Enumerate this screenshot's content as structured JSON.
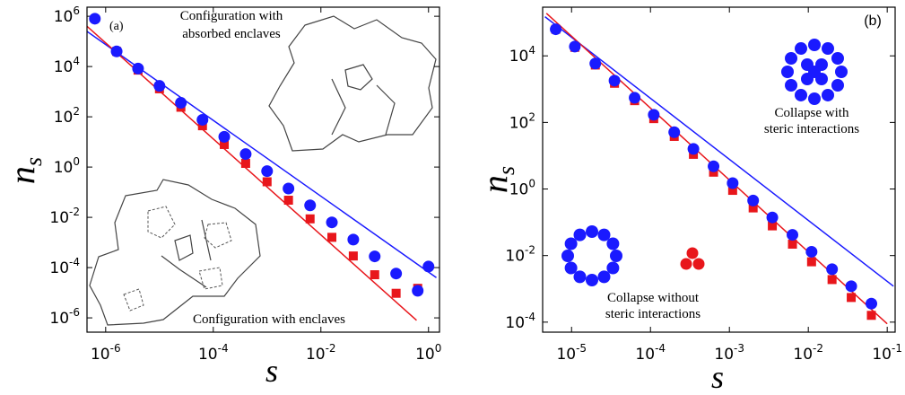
{
  "chart_data": [
    {
      "type": "scatter",
      "panel_label": "(a)",
      "xlabel": "s",
      "ylabel": "n",
      "ylabel_sub": "s",
      "log_x": true,
      "log_y": true,
      "xlim": [
        4.5e-07,
        1.6
      ],
      "ylim": [
        2.7e-07,
        2300000.0
      ],
      "xticks": [
        {
          "value": 1e-06,
          "label": "10",
          "exp": "-6"
        },
        {
          "value": 0.0001,
          "label": "10",
          "exp": "-4"
        },
        {
          "value": 0.01,
          "label": "10",
          "exp": "-2"
        },
        {
          "value": 1,
          "label": "10",
          "exp": "0"
        }
      ],
      "yticks": [
        {
          "value": 1000000.0,
          "label": "10",
          "exp": "6"
        },
        {
          "value": 10000.0,
          "label": "10",
          "exp": "4"
        },
        {
          "value": 100.0,
          "label": "10",
          "exp": "2"
        },
        {
          "value": 1,
          "label": "10",
          "exp": "0"
        },
        {
          "value": 0.01,
          "label": "10",
          "exp": "-2"
        },
        {
          "value": 0.0001,
          "label": "10",
          "exp": "-4"
        },
        {
          "value": 1e-06,
          "label": "10",
          "exp": "-6"
        }
      ],
      "annotations": [
        "Configuration with",
        "absorbed enclaves",
        "Configuration with enclaves"
      ],
      "series": [
        {
          "color": "#e8161b",
          "marker": "square",
          "x": [
            1.6e-06,
            4e-06,
            1e-05,
            2.5e-05,
            6.3e-05,
            0.00016,
            0.0004,
            0.001,
            0.0025,
            0.0063,
            0.016,
            0.04,
            0.1,
            0.25,
            0.63
          ],
          "values": [
            40000.0,
            7200.0,
            1300.0,
            240.0,
            44,
            7.9,
            1.4,
            0.26,
            0.048,
            0.0087,
            0.0016,
            0.00029,
            5.2e-05,
            9.5e-06,
            1.5e-05
          ]
        },
        {
          "color": "#1a1aff",
          "marker": "circle",
          "x": [
            6.3e-07,
            1.6e-06,
            4e-06,
            1e-05,
            2.5e-05,
            6.3e-05,
            0.00016,
            0.0004,
            0.001,
            0.0025,
            0.0063,
            0.016,
            0.04,
            0.1,
            0.25,
            0.63,
            1.0
          ],
          "values": [
            800000.0,
            40000.0,
            8300.0,
            1700.0,
            360.0,
            76,
            16,
            3.3,
            0.69,
            0.14,
            0.03,
            0.0063,
            0.0013,
            0.00028,
            5.8e-05,
            1.2e-05,
            0.00011
          ]
        }
      ],
      "fit_lines": [
        {
          "color": "#1a1aff",
          "x": [
            4.5e-07,
            1.4
          ],
          "values": [
            250000.0,
            4e-05
          ]
        },
        {
          "color": "#e8161b",
          "x": [
            4.5e-07,
            0.6
          ],
          "values": [
            400000.0,
            8e-07
          ]
        }
      ]
    },
    {
      "type": "scatter",
      "panel_label": "(b)",
      "xlabel": "s",
      "ylabel": "n",
      "ylabel_sub": "s",
      "log_x": true,
      "log_y": true,
      "xlim": [
        4.3e-06,
        0.126
      ],
      "ylim": [
        5e-05,
        290000.0
      ],
      "xticks": [
        {
          "value": 1e-05,
          "label": "10",
          "exp": "-5"
        },
        {
          "value": 0.0001,
          "label": "10",
          "exp": "-4"
        },
        {
          "value": 0.001,
          "label": "10",
          "exp": "-3"
        },
        {
          "value": 0.01,
          "label": "10",
          "exp": "-2"
        },
        {
          "value": 0.1,
          "label": "10",
          "exp": "-1"
        }
      ],
      "yticks": [
        {
          "value": 10000.0,
          "label": "10",
          "exp": "4"
        },
        {
          "value": 100.0,
          "label": "10",
          "exp": "2"
        },
        {
          "value": 1,
          "label": "10",
          "exp": "0"
        },
        {
          "value": 0.01,
          "label": "10",
          "exp": "-2"
        },
        {
          "value": 0.0001,
          "label": "10",
          "exp": "-4"
        }
      ],
      "annotations": [
        "Collapse with",
        "steric interactions",
        "Collapse without",
        "steric interactions"
      ],
      "series": [
        {
          "color": "#e8161b",
          "marker": "square",
          "x": [
            6.3e-06,
            1.1e-05,
            2e-05,
            3.5e-05,
            6.3e-05,
            0.00011,
            0.0002,
            0.00035,
            0.00063,
            0.0011,
            0.002,
            0.0035,
            0.0063,
            0.011,
            0.02,
            0.035,
            0.063
          ],
          "values": [
            63000.0,
            18000.0,
            5300.0,
            1500.0,
            450.0,
            130.0,
            38,
            11,
            3.2,
            0.91,
            0.27,
            0.078,
            0.022,
            0.0065,
            0.0019,
            0.00055,
            0.00016
          ]
        },
        {
          "color": "#1a1aff",
          "marker": "circle",
          "x": [
            6.3e-06,
            1.1e-05,
            2e-05,
            3.5e-05,
            6.3e-05,
            0.00011,
            0.0002,
            0.00035,
            0.00063,
            0.0011,
            0.002,
            0.0035,
            0.0063,
            0.011,
            0.02,
            0.035,
            0.063
          ],
          "values": [
            63000.0,
            19000.0,
            5900.0,
            1800.0,
            550.0,
            170.0,
            51,
            16,
            4.8,
            1.5,
            0.45,
            0.14,
            0.042,
            0.013,
            0.0039,
            0.0012,
            0.00036
          ]
        }
      ],
      "fit_lines": [
        {
          "color": "#1a1aff",
          "x": [
            4.6e-06,
            0.12
          ],
          "values": [
            150000.0,
            0.0012
          ]
        },
        {
          "color": "#e8161b",
          "x": [
            4.8e-06,
            0.1
          ],
          "values": [
            190000.0,
            8.9e-05
          ]
        }
      ]
    }
  ]
}
